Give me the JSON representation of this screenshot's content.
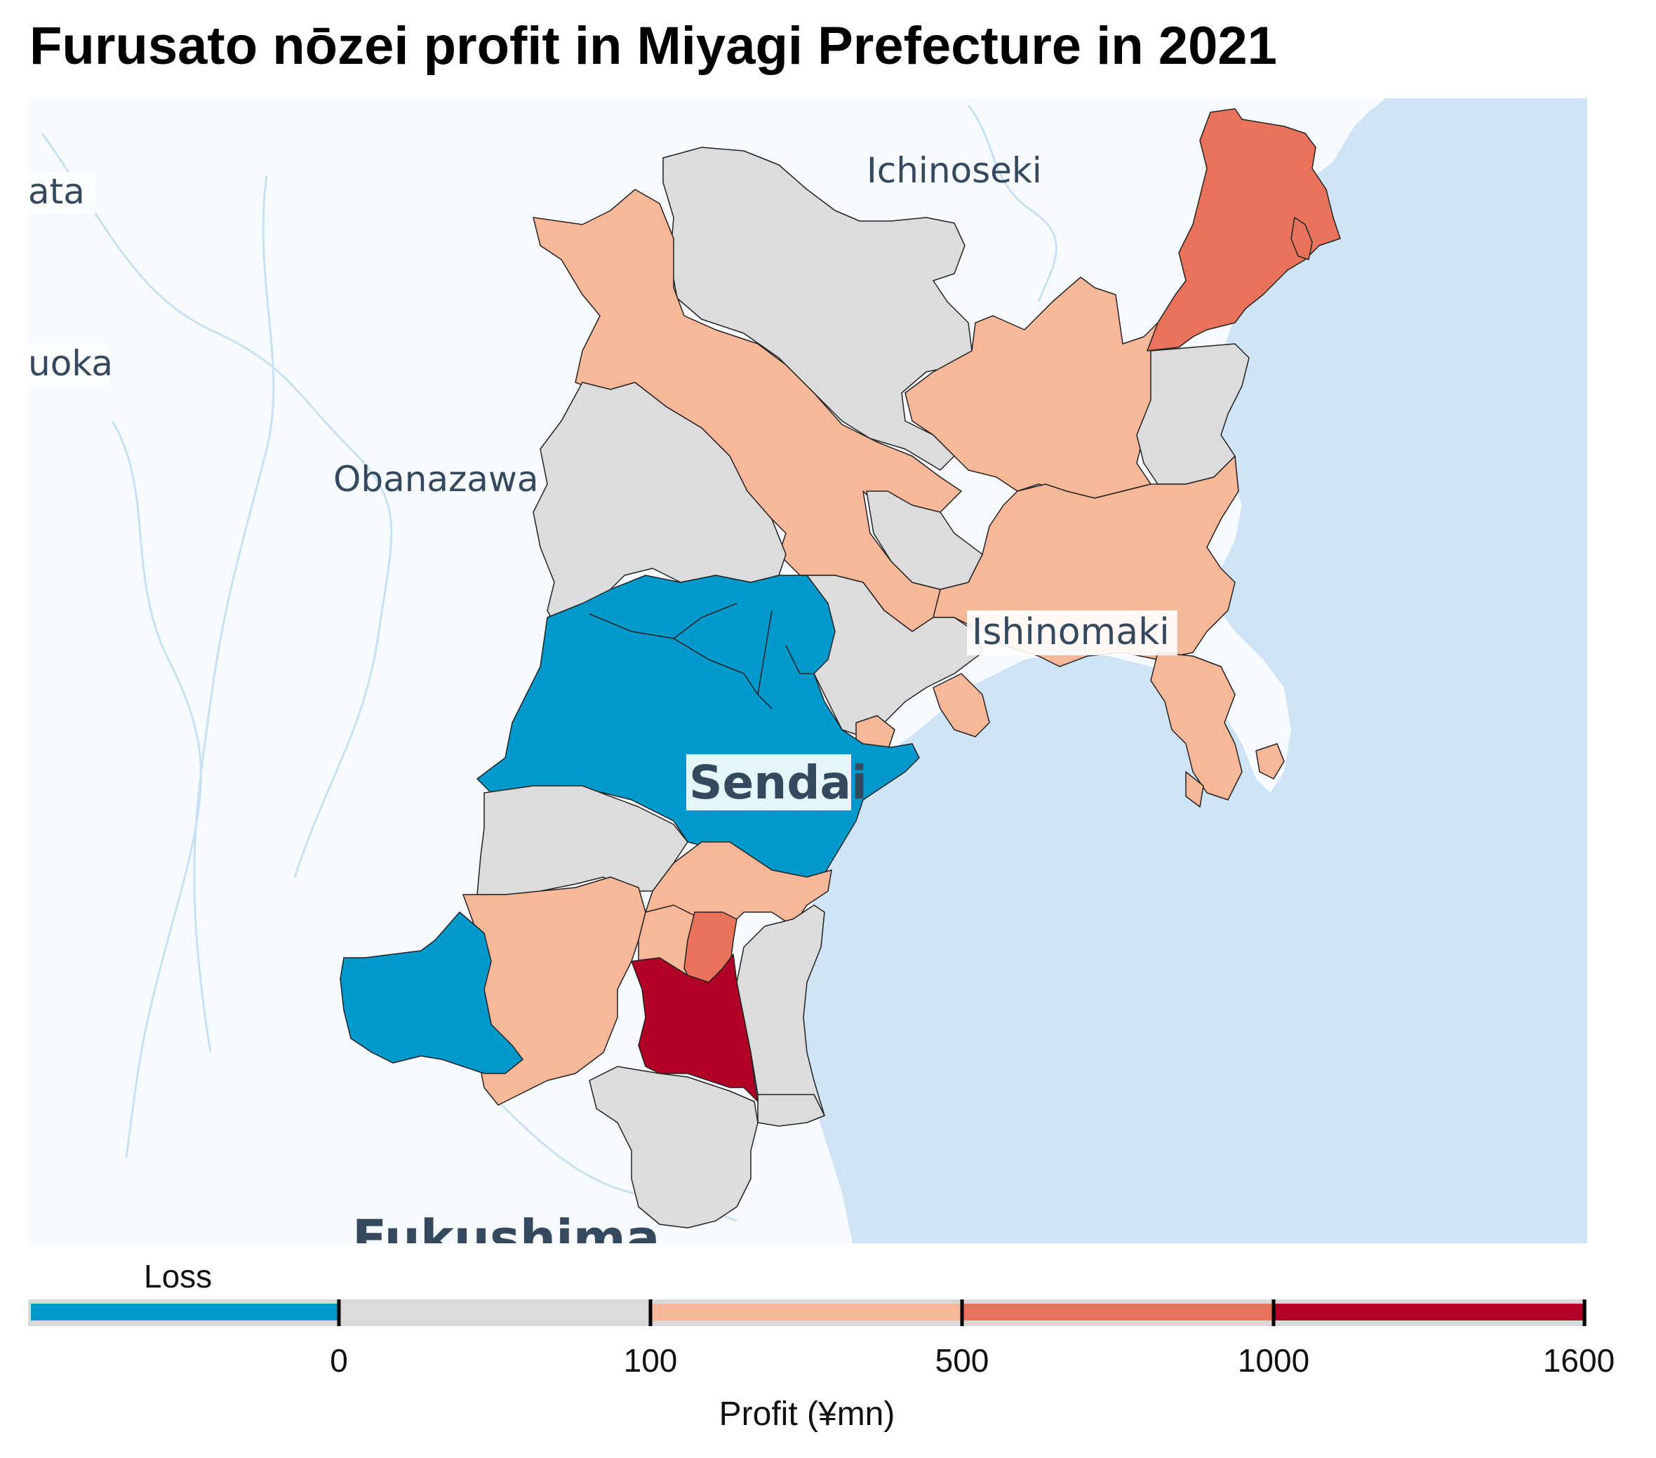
{
  "title": "Furusato nōzei profit in Miyagi Prefecture in 2021",
  "colors": {
    "water": "#cfe4f6",
    "land": "#f7fbff",
    "river": "#c9e1f4",
    "border": "#222222",
    "loss": "#0099cc",
    "bin_0_100": "#dcdcdc",
    "bin_100_500": "#f7b799",
    "bin_500_1000": "#e8735a",
    "bin_1000_1600": "#b10026"
  },
  "map_labels": {
    "ichinoseki": "Ichinoseki",
    "yamagata_partial": "ata",
    "tsuruoka_partial": "uoka",
    "obanazawa": "Obanazawa",
    "ishinomaki": "Ishinomaki",
    "sendai": "Sendai",
    "fukushima": "Fukushima"
  },
  "legend": {
    "heading": "Loss",
    "axis_title": "Profit (¥mn)",
    "ticks": [
      "0",
      "100",
      "500",
      "1000",
      "1600"
    ],
    "bins": [
      {
        "label": "Loss",
        "color": "#0099cc"
      },
      {
        "label": "0–100",
        "color": "#dcdcdc"
      },
      {
        "label": "100–500",
        "color": "#f7b799"
      },
      {
        "label": "500–1000",
        "color": "#e8735a"
      },
      {
        "label": "1000–1600",
        "color": "#b10026"
      }
    ]
  }
}
